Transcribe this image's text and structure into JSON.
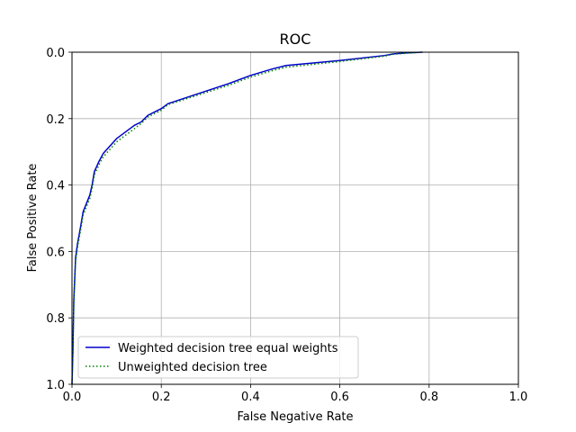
{
  "chart_data": {
    "type": "line",
    "title": "ROC",
    "xlabel": "False Negative Rate",
    "ylabel": "False Positive Rate",
    "xlim": [
      0,
      1
    ],
    "ylim": [
      0,
      1
    ],
    "y_inverted": true,
    "grid": true,
    "legend_position": "lower-left",
    "x_ticks": [
      0.0,
      0.2,
      0.4,
      0.6,
      0.8,
      1.0
    ],
    "y_ticks": [
      0.0,
      0.2,
      0.4,
      0.6,
      0.8,
      1.0
    ],
    "x_tick_labels": [
      "0.0",
      "0.2",
      "0.4",
      "0.6",
      "0.8",
      "1.0"
    ],
    "y_tick_labels": [
      "0.0",
      "0.2",
      "0.4",
      "0.6",
      "0.8",
      "1.0"
    ],
    "series": [
      {
        "name": "Weighted decision tree equal weights",
        "color": "#0000cc",
        "style": "solid",
        "x": [
          0.0,
          0.002,
          0.004,
          0.008,
          0.012,
          0.02,
          0.025,
          0.04,
          0.045,
          0.05,
          0.06,
          0.07,
          0.1,
          0.12,
          0.14,
          0.155,
          0.17,
          0.2,
          0.215,
          0.35,
          0.4,
          0.45,
          0.48,
          0.6,
          0.7,
          0.72,
          0.75,
          0.785
        ],
        "y": [
          1.0,
          0.9,
          0.75,
          0.62,
          0.58,
          0.52,
          0.48,
          0.43,
          0.4,
          0.36,
          0.33,
          0.305,
          0.26,
          0.24,
          0.22,
          0.21,
          0.19,
          0.17,
          0.155,
          0.095,
          0.07,
          0.05,
          0.04,
          0.025,
          0.01,
          0.005,
          0.002,
          0.0
        ]
      },
      {
        "name": "Unweighted decision tree",
        "color": "#008000",
        "style": "dotted",
        "x": [
          0.0,
          0.002,
          0.004,
          0.008,
          0.012,
          0.02,
          0.025,
          0.04,
          0.045,
          0.05,
          0.06,
          0.07,
          0.1,
          0.12,
          0.14,
          0.155,
          0.17,
          0.2,
          0.215,
          0.35,
          0.4,
          0.45,
          0.48,
          0.6,
          0.7,
          0.72,
          0.75,
          0.785
        ],
        "y": [
          1.0,
          0.9,
          0.76,
          0.63,
          0.59,
          0.53,
          0.49,
          0.44,
          0.41,
          0.37,
          0.34,
          0.315,
          0.27,
          0.25,
          0.23,
          0.215,
          0.195,
          0.175,
          0.158,
          0.1,
          0.075,
          0.055,
          0.045,
          0.028,
          0.012,
          0.006,
          0.003,
          0.0
        ]
      }
    ]
  }
}
